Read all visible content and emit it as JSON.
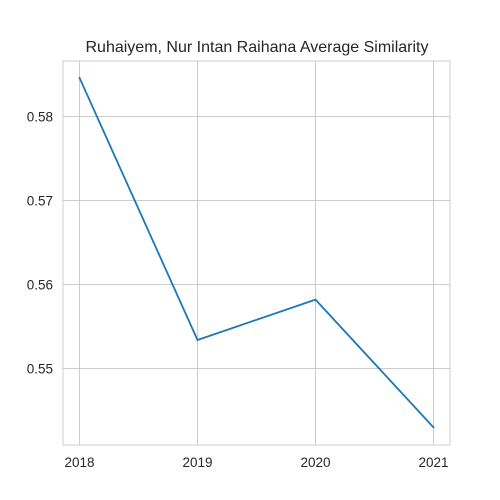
{
  "chart_data": {
    "type": "line",
    "title": "Ruhaiyem, Nur Intan Raihana Average Similarity",
    "xlabel": "",
    "ylabel": "",
    "x": [
      2018,
      2019,
      2020,
      2021
    ],
    "x_tick_labels": [
      "2018",
      "2019",
      "2020",
      "2021"
    ],
    "y_ticks": [
      0.55,
      0.56,
      0.57,
      0.58
    ],
    "y_tick_labels": [
      "0.55",
      "0.56",
      "0.57",
      "0.58"
    ],
    "xlim": [
      2017.86,
      2021.14
    ],
    "ylim": [
      0.5409,
      0.5866
    ],
    "grid": true,
    "series": [
      {
        "color": "#1f77b4",
        "values": [
          0.5846,
          0.5534,
          0.5582,
          0.543
        ]
      }
    ]
  }
}
